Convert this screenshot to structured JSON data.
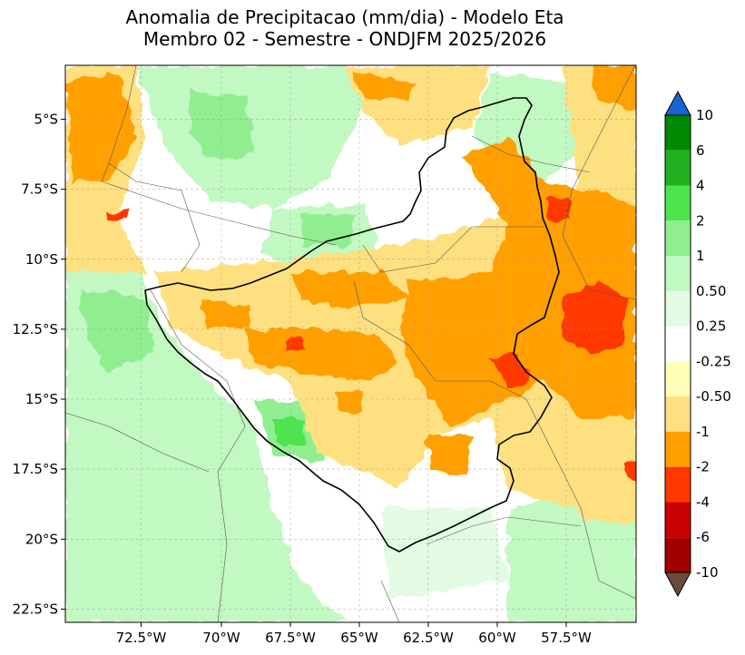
{
  "title": {
    "line1": "Anomalia de Precipitacao (mm/dia) - Modelo Eta",
    "line2": "Membro 02 - Semestre - ONDJFM 2025/2026"
  },
  "map": {
    "lon_range": [
      -75.3,
      -54.6
    ],
    "lat_range": [
      -23.0,
      -3.0
    ],
    "lon_ticks": [
      {
        "value": -72.5,
        "label": "72.5°W"
      },
      {
        "value": -70.0,
        "label": "70°W"
      },
      {
        "value": -67.5,
        "label": "67.5°W"
      },
      {
        "value": -65.0,
        "label": "65°W"
      },
      {
        "value": -62.5,
        "label": "62.5°W"
      },
      {
        "value": -60.0,
        "label": "60°W"
      },
      {
        "value": -57.5,
        "label": "57.5°W"
      }
    ],
    "lat_ticks": [
      {
        "value": -5.0,
        "label": "5°S"
      },
      {
        "value": -7.5,
        "label": "7.5°S"
      },
      {
        "value": -10.0,
        "label": "10°S"
      },
      {
        "value": -12.5,
        "label": "12.5°S"
      },
      {
        "value": -15.0,
        "label": "15°S"
      },
      {
        "value": -17.5,
        "label": "17.5°S"
      },
      {
        "value": -20.0,
        "label": "20°S"
      },
      {
        "value": -22.5,
        "label": "22.5°S"
      }
    ],
    "gridlines": true,
    "background_color": "#ffffff"
  },
  "colorbar": {
    "levels": [
      "10",
      "6",
      "4",
      "2",
      "1",
      "0.50",
      "0.25",
      "-0.25",
      "-0.50",
      "-1",
      "-2",
      "-4",
      "-6",
      "-10"
    ],
    "colors": [
      "#008800",
      "#20b020",
      "#4ee44e",
      "#90ee90",
      "#c2f8c2",
      "#e2fbe2",
      "#ffffff",
      "#ffffb8",
      "#ffe080",
      "#ffa000",
      "#ff3800",
      "#c80000",
      "#a00000"
    ],
    "extend_top_color": "#1466d2",
    "extend_bottom_color": "#6b4a3a"
  }
}
